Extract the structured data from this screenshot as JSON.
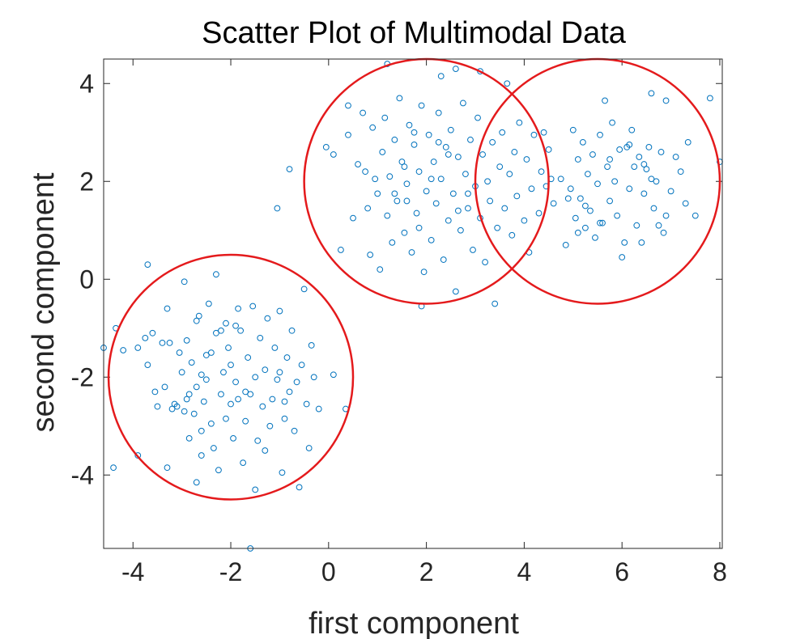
{
  "colors": {
    "marker": "#0072BD",
    "circle": "#E41A1C",
    "axis": "#262626",
    "background": "#FFFFFF"
  },
  "chart_data": {
    "type": "scatter",
    "title": "Scatter Plot of Multimodal Data",
    "xlabel": "first component",
    "ylabel": "second component",
    "xlim": [
      -4.6,
      8.05
    ],
    "ylim": [
      -5.5,
      4.5
    ],
    "xticks": [
      -4,
      -2,
      0,
      2,
      4,
      6,
      8
    ],
    "xtick_labels": [
      "-4",
      "-2",
      "0",
      "2",
      "4",
      "6",
      "8"
    ],
    "yticks": [
      -4,
      -2,
      0,
      2,
      4
    ],
    "ytick_labels": [
      "-4",
      "-2",
      "0",
      "2",
      "4"
    ],
    "grid": false,
    "box": true,
    "marker": "open-circle",
    "circles": [
      {
        "cx": -2,
        "cy": -2,
        "r": 2.5
      },
      {
        "cx": 2,
        "cy": 2,
        "r": 2.5
      },
      {
        "cx": 5.5,
        "cy": 2,
        "r": 2.5
      }
    ],
    "points": [
      [
        -4.6,
        -1.4
      ],
      [
        -4.2,
        -1.45
      ],
      [
        -4.35,
        -1.0
      ],
      [
        -4.4,
        -3.85
      ],
      [
        -3.9,
        -3.6
      ],
      [
        -3.7,
        0.3
      ],
      [
        -3.9,
        -1.4
      ],
      [
        -3.75,
        -1.2
      ],
      [
        -3.7,
        -1.75
      ],
      [
        -3.6,
        -1.1
      ],
      [
        -3.55,
        -2.3
      ],
      [
        -3.5,
        -2.6
      ],
      [
        -3.35,
        -2.2
      ],
      [
        -3.3,
        -3.85
      ],
      [
        -3.3,
        -0.6
      ],
      [
        -3.25,
        -1.3
      ],
      [
        -3.15,
        -2.55
      ],
      [
        -3.1,
        -2.6
      ],
      [
        -3.05,
        -1.5
      ],
      [
        -3.0,
        -1.9
      ],
      [
        -2.95,
        -2.7
      ],
      [
        -2.95,
        -0.05
      ],
      [
        -2.9,
        -1.25
      ],
      [
        -2.85,
        -2.35
      ],
      [
        -2.85,
        -3.25
      ],
      [
        -2.8,
        -1.7
      ],
      [
        -2.75,
        -2.75
      ],
      [
        -2.7,
        -2.2
      ],
      [
        -2.7,
        -0.85
      ],
      [
        -2.65,
        -0.75
      ],
      [
        -2.6,
        -1.95
      ],
      [
        -2.6,
        -3.1
      ],
      [
        -2.55,
        -2.5
      ],
      [
        -2.5,
        -2.05
      ],
      [
        -2.45,
        -0.5
      ],
      [
        -2.4,
        -2.95
      ],
      [
        -2.4,
        -1.5
      ],
      [
        -2.35,
        -3.45
      ],
      [
        -2.3,
        -1.1
      ],
      [
        -2.3,
        0.1
      ],
      [
        -2.25,
        -3.9
      ],
      [
        -2.2,
        -2.35
      ],
      [
        -2.15,
        -1.9
      ],
      [
        -2.1,
        -0.9
      ],
      [
        -2.1,
        -2.85
      ],
      [
        -2.05,
        -1.4
      ],
      [
        -2.0,
        -1.75
      ],
      [
        -1.95,
        -3.25
      ],
      [
        -1.9,
        -2.1
      ],
      [
        -1.85,
        -0.6
      ],
      [
        -1.85,
        -2.45
      ],
      [
        -1.8,
        -1.05
      ],
      [
        -1.75,
        -3.75
      ],
      [
        -1.7,
        -2.9
      ],
      [
        -1.65,
        -1.6
      ],
      [
        -1.6,
        -2.35
      ],
      [
        -1.55,
        -0.55
      ],
      [
        -1.5,
        -2.0
      ],
      [
        -1.5,
        -4.3
      ],
      [
        -1.45,
        -3.3
      ],
      [
        -1.4,
        -1.2
      ],
      [
        -1.35,
        -2.6
      ],
      [
        -1.3,
        -1.85
      ],
      [
        -1.25,
        -0.8
      ],
      [
        -1.2,
        -3.0
      ],
      [
        -1.15,
        -2.45
      ],
      [
        -1.1,
        -1.4
      ],
      [
        -1.05,
        -2.05
      ],
      [
        -1.0,
        -0.65
      ],
      [
        -0.95,
        -3.95
      ],
      [
        -0.9,
        -2.85
      ],
      [
        -0.85,
        -1.6
      ],
      [
        -0.8,
        -2.3
      ],
      [
        -0.75,
        -1.05
      ],
      [
        -0.7,
        -3.1
      ],
      [
        -0.65,
        -2.1
      ],
      [
        -0.6,
        -4.25
      ],
      [
        -0.55,
        -1.75
      ],
      [
        -0.5,
        -0.2
      ],
      [
        -0.45,
        -2.55
      ],
      [
        -0.4,
        -3.45
      ],
      [
        -0.35,
        -1.35
      ],
      [
        -0.3,
        -2.0
      ],
      [
        -0.2,
        -2.65
      ],
      [
        0.1,
        -1.95
      ],
      [
        0.35,
        -2.65
      ],
      [
        -1.6,
        -5.5
      ],
      [
        -2.7,
        -4.15
      ],
      [
        -3.4,
        -1.3
      ],
      [
        -2.0,
        -2.55
      ],
      [
        -1.7,
        -2.3
      ],
      [
        -2.5,
        -1.55
      ],
      [
        -2.9,
        -2.45
      ],
      [
        -1.3,
        -3.5
      ],
      [
        -2.2,
        -1.05
      ],
      [
        -3.2,
        -2.65
      ],
      [
        -1.0,
        -1.9
      ],
      [
        -2.6,
        -3.6
      ],
      [
        -0.9,
        -2.5
      ],
      [
        -1.9,
        -0.95
      ],
      [
        -0.8,
        2.25
      ],
      [
        -1.05,
        1.45
      ],
      [
        -0.05,
        2.7
      ],
      [
        0.25,
        0.6
      ],
      [
        0.4,
        3.55
      ],
      [
        0.4,
        2.95
      ],
      [
        0.5,
        1.25
      ],
      [
        0.6,
        2.35
      ],
      [
        0.7,
        3.4
      ],
      [
        0.75,
        2.2
      ],
      [
        0.8,
        1.45
      ],
      [
        0.85,
        0.5
      ],
      [
        0.9,
        3.1
      ],
      [
        0.95,
        2.05
      ],
      [
        1.0,
        1.75
      ],
      [
        1.05,
        0.2
      ],
      [
        1.1,
        2.6
      ],
      [
        1.15,
        3.3
      ],
      [
        1.2,
        1.3
      ],
      [
        1.25,
        2.1
      ],
      [
        1.3,
        0.75
      ],
      [
        1.35,
        2.85
      ],
      [
        1.4,
        1.6
      ],
      [
        1.45,
        3.7
      ],
      [
        1.5,
        2.4
      ],
      [
        1.55,
        0.95
      ],
      [
        1.6,
        1.95
      ],
      [
        1.65,
        3.15
      ],
      [
        1.7,
        0.55
      ],
      [
        1.75,
        2.75
      ],
      [
        1.8,
        1.35
      ],
      [
        1.85,
        2.2
      ],
      [
        1.9,
        3.55
      ],
      [
        1.95,
        0.15
      ],
      [
        2.0,
        1.8
      ],
      [
        2.05,
        2.95
      ],
      [
        2.1,
        0.8
      ],
      [
        2.15,
        2.4
      ],
      [
        2.2,
        1.55
      ],
      [
        2.25,
        3.4
      ],
      [
        2.3,
        2.05
      ],
      [
        2.35,
        0.4
      ],
      [
        2.4,
        2.7
      ],
      [
        2.45,
        1.2
      ],
      [
        2.5,
        3.05
      ],
      [
        2.55,
        1.75
      ],
      [
        2.6,
        -0.25
      ],
      [
        2.65,
        2.5
      ],
      [
        2.7,
        1.0
      ],
      [
        2.75,
        3.6
      ],
      [
        2.8,
        2.15
      ],
      [
        2.85,
        1.45
      ],
      [
        2.9,
        2.85
      ],
      [
        2.95,
        0.6
      ],
      [
        3.0,
        1.9
      ],
      [
        3.05,
        3.3
      ],
      [
        3.1,
        1.25
      ],
      [
        3.15,
        2.55
      ],
      [
        3.2,
        0.35
      ],
      [
        3.25,
        2.0
      ],
      [
        3.3,
        1.6
      ],
      [
        3.35,
        2.8
      ],
      [
        3.4,
        -0.5
      ],
      [
        3.45,
        1.05
      ],
      [
        3.5,
        2.3
      ],
      [
        3.55,
        3.0
      ],
      [
        3.6,
        1.45
      ],
      [
        3.65,
        4.0
      ],
      [
        3.7,
        2.15
      ],
      [
        3.75,
        0.9
      ],
      [
        3.8,
        2.6
      ],
      [
        3.85,
        1.7
      ],
      [
        3.9,
        3.2
      ],
      [
        4.0,
        1.2
      ],
      [
        4.05,
        2.45
      ],
      [
        4.1,
        0.55
      ],
      [
        4.15,
        1.85
      ],
      [
        4.2,
        2.95
      ],
      [
        4.3,
        1.35
      ],
      [
        4.35,
        2.2
      ],
      [
        4.4,
        3.0
      ],
      [
        4.5,
        2.65
      ],
      [
        1.2,
        4.4
      ],
      [
        2.6,
        4.3
      ],
      [
        3.1,
        4.25
      ],
      [
        2.3,
        4.15
      ],
      [
        4.45,
        1.9
      ],
      [
        4.55,
        2.05
      ],
      [
        1.9,
        -0.55
      ],
      [
        0.1,
        2.55
      ],
      [
        1.6,
        1.6
      ],
      [
        2.45,
        2.55
      ],
      [
        1.75,
        3.0
      ],
      [
        1.35,
        1.75
      ],
      [
        2.85,
        1.75
      ],
      [
        2.1,
        2.05
      ],
      [
        1.55,
        2.3
      ],
      [
        2.65,
        1.4
      ],
      [
        1.85,
        1.05
      ],
      [
        2.25,
        2.8
      ],
      [
        4.6,
        1.55
      ],
      [
        4.75,
        2.05
      ],
      [
        4.85,
        0.7
      ],
      [
        4.95,
        1.85
      ],
      [
        5.0,
        3.05
      ],
      [
        5.05,
        1.25
      ],
      [
        5.1,
        2.45
      ],
      [
        5.15,
        1.65
      ],
      [
        5.2,
        2.8
      ],
      [
        5.25,
        1.05
      ],
      [
        5.3,
        2.15
      ],
      [
        5.35,
        1.4
      ],
      [
        5.4,
        2.55
      ],
      [
        5.45,
        0.85
      ],
      [
        5.5,
        1.95
      ],
      [
        5.55,
        2.95
      ],
      [
        5.6,
        1.15
      ],
      [
        5.65,
        3.65
      ],
      [
        5.7,
        2.3
      ],
      [
        5.75,
        1.6
      ],
      [
        5.8,
        3.2
      ],
      [
        5.85,
        2.0
      ],
      [
        5.9,
        1.3
      ],
      [
        5.95,
        2.65
      ],
      [
        6.0,
        0.45
      ],
      [
        6.05,
        0.75
      ],
      [
        6.1,
        2.7
      ],
      [
        6.15,
        1.85
      ],
      [
        6.2,
        3.05
      ],
      [
        6.25,
        2.3
      ],
      [
        6.3,
        1.1
      ],
      [
        6.35,
        2.5
      ],
      [
        6.4,
        0.75
      ],
      [
        6.45,
        1.75
      ],
      [
        6.5,
        2.25
      ],
      [
        6.55,
        2.7
      ],
      [
        6.6,
        3.8
      ],
      [
        6.65,
        1.45
      ],
      [
        6.7,
        2.0
      ],
      [
        6.75,
        1.1
      ],
      [
        6.8,
        2.6
      ],
      [
        6.85,
        0.95
      ],
      [
        6.9,
        3.65
      ],
      [
        7.0,
        1.8
      ],
      [
        7.1,
        2.5
      ],
      [
        7.2,
        2.2
      ],
      [
        7.3,
        1.55
      ],
      [
        7.35,
        2.8
      ],
      [
        7.5,
        1.3
      ],
      [
        7.8,
        3.7
      ],
      [
        8.0,
        2.4
      ],
      [
        5.55,
        1.15
      ],
      [
        6.15,
        2.75
      ],
      [
        5.25,
        1.5
      ],
      [
        6.45,
        2.35
      ],
      [
        5.75,
        2.45
      ],
      [
        4.9,
        1.65
      ],
      [
        6.9,
        1.3
      ],
      [
        5.1,
        0.95
      ],
      [
        6.6,
        2.05
      ]
    ]
  }
}
